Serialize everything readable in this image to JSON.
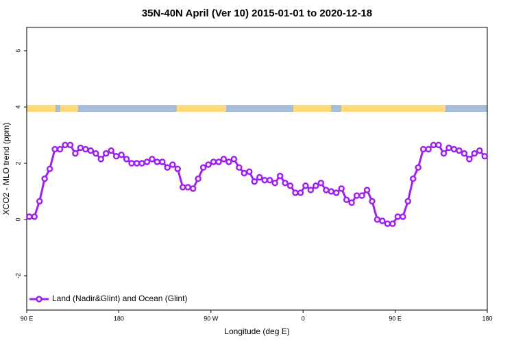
{
  "chart_data": {
    "type": "line",
    "title": "35N-40N April (Ver 10)   2015-01-01 to 2020-12-18",
    "x_label": "Longitude (deg E)",
    "y_label": "XCO2 - MLO trend (ppm)",
    "legend": "bottom-left",
    "xlim": [
      90,
      540
    ],
    "ylim": [
      -3.22,
      6.83
    ],
    "xticks": [
      {
        "value": 90,
        "label": "90 E"
      },
      180,
      {
        "value": 270,
        "label": "90 W"
      },
      {
        "value": 360,
        "label": "0"
      },
      {
        "value": 450,
        "label": "90 E"
      },
      {
        "value": 540,
        "label": "180"
      }
    ],
    "yticks": [
      -2,
      0,
      2,
      4,
      6
    ],
    "series": [
      {
        "name": "Land (Nadir&Glint) and Ocean (Glint)",
        "color": "#a020f0",
        "x": [
          92.5,
          97.5,
          102.5,
          107.5,
          112.5,
          117.5,
          122.5,
          127.5,
          132.5,
          137.5,
          142.5,
          147.5,
          152.5,
          157.5,
          162.5,
          167.5,
          172.5,
          177.5,
          182.5,
          187.5,
          192.5,
          197.5,
          202.5,
          207.5,
          212.5,
          217.5,
          222.5,
          227.5,
          232.5,
          237.5,
          242.5,
          247.5,
          252.5,
          257.5,
          262.5,
          267.5,
          272.5,
          277.5,
          282.5,
          287.5,
          292.5,
          297.5,
          302.5,
          307.5,
          312.5,
          317.5,
          322.5,
          327.5,
          332.5,
          337.5,
          342.5,
          347.5,
          352.5,
          357.5,
          362.5,
          367.5,
          372.5,
          377.5,
          382.5,
          387.5,
          392.5,
          397.5,
          402.5,
          407.5,
          412.5,
          417.5,
          422.5,
          427.5,
          432.5,
          437.5,
          442.5,
          447.5,
          452.5,
          457.5,
          462.5,
          467.5,
          472.5,
          477.5,
          482.5,
          487.5,
          492.5,
          497.5,
          502.5,
          507.5,
          512.5,
          517.5,
          522.5,
          527.5,
          532.5,
          537.5
        ],
        "values": [
          0.1,
          0.1,
          0.65,
          1.45,
          1.8,
          2.5,
          2.5,
          2.65,
          2.65,
          2.35,
          2.55,
          2.5,
          2.45,
          2.35,
          2.15,
          2.35,
          2.45,
          2.25,
          2.3,
          2.15,
          2.0,
          2.0,
          2.0,
          2.05,
          2.15,
          2.05,
          2.05,
          1.85,
          1.95,
          1.8,
          1.15,
          1.15,
          1.1,
          1.45,
          1.85,
          1.95,
          2.05,
          2.05,
          2.15,
          2.05,
          2.15,
          1.85,
          1.65,
          1.7,
          1.35,
          1.5,
          1.4,
          1.4,
          1.3,
          1.55,
          1.3,
          1.2,
          0.95,
          0.95,
          1.2,
          1.05,
          1.2,
          1.3,
          1.05,
          1.0,
          0.95,
          1.1,
          0.7,
          0.6,
          0.85,
          0.85,
          1.05,
          0.65,
          0.0,
          -0.05,
          -0.15,
          -0.15,
          0.1,
          0.1,
          0.65,
          1.45,
          1.85,
          2.5,
          2.5,
          2.65,
          2.65,
          2.35,
          2.55,
          2.5,
          2.45,
          2.35,
          2.15,
          2.35,
          2.45,
          2.25
        ]
      }
    ]
  }
}
